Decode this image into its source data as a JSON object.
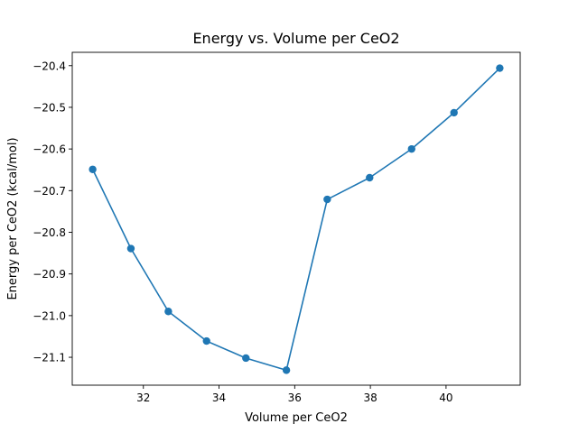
{
  "chart_data": {
    "type": "line",
    "title": "Energy vs. Volume per CeO2",
    "xlabel": "Volume per CeO2",
    "ylabel": "Energy per CeO2 (kcal/mol)",
    "xlim": [
      30.12,
      41.96
    ],
    "ylim": [
      -21.167,
      -20.368
    ],
    "xticks": [
      32,
      34,
      36,
      38,
      40
    ],
    "xtick_labels": [
      "32",
      "34",
      "36",
      "38",
      "40"
    ],
    "yticks": [
      -21.1,
      -21.0,
      -20.9,
      -20.8,
      -20.7,
      -20.6,
      -20.5,
      -20.4
    ],
    "ytick_labels": [
      "−21.1",
      "−21.0",
      "−20.9",
      "−20.8",
      "−20.7",
      "−20.6",
      "−20.5",
      "−20.4"
    ],
    "grid": false,
    "series": [
      {
        "color": "#1f77b4",
        "marker": "circle",
        "x": [
          30.66,
          31.67,
          32.66,
          33.67,
          34.71,
          35.78,
          36.86,
          37.98,
          39.09,
          40.21,
          41.42
        ],
        "y": [
          -20.649,
          -20.839,
          -20.99,
          -21.061,
          -21.102,
          -21.131,
          -20.721,
          -20.669,
          -20.6,
          -20.513,
          -20.406
        ]
      }
    ]
  }
}
